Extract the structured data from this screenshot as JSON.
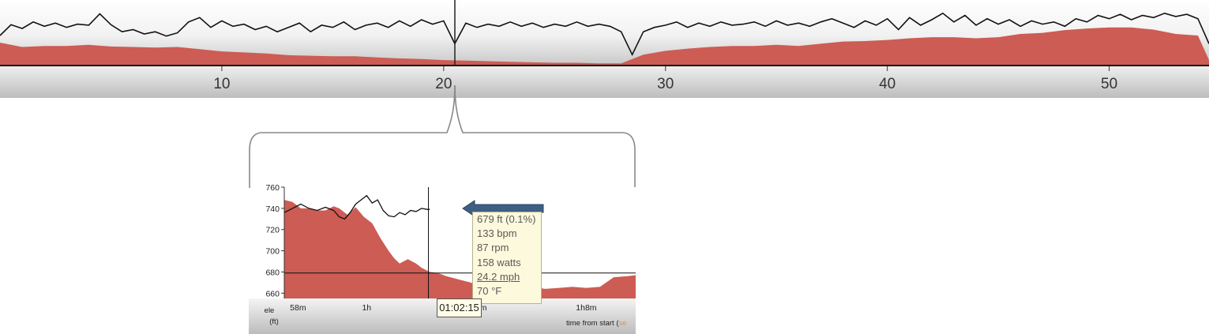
{
  "chart_data": [
    {
      "type": "area",
      "panel": "overview",
      "x_ticks": [
        "10",
        "20",
        "30",
        "40",
        "50"
      ],
      "xlim": [
        0,
        54.5
      ],
      "elevation_profile": [
        [
          0,
          0.42
        ],
        [
          1,
          0.34
        ],
        [
          2,
          0.36
        ],
        [
          3,
          0.36
        ],
        [
          4,
          0.38
        ],
        [
          5,
          0.35
        ],
        [
          6,
          0.34
        ],
        [
          7,
          0.33
        ],
        [
          8,
          0.34
        ],
        [
          9,
          0.3
        ],
        [
          10,
          0.26
        ],
        [
          11,
          0.24
        ],
        [
          12,
          0.22
        ],
        [
          13,
          0.19
        ],
        [
          14,
          0.18
        ],
        [
          15,
          0.17
        ],
        [
          16,
          0.17
        ],
        [
          17,
          0.15
        ],
        [
          18,
          0.13
        ],
        [
          19,
          0.12
        ],
        [
          20,
          0.1
        ],
        [
          21,
          0.09
        ],
        [
          22,
          0.08
        ],
        [
          23,
          0.07
        ],
        [
          24,
          0.06
        ],
        [
          25,
          0.05
        ],
        [
          26,
          0.05
        ],
        [
          27,
          0.04
        ],
        [
          28,
          0.04
        ],
        [
          29,
          0.2
        ],
        [
          30,
          0.27
        ],
        [
          31,
          0.31
        ],
        [
          32,
          0.34
        ],
        [
          33,
          0.36
        ],
        [
          34,
          0.36
        ],
        [
          35,
          0.38
        ],
        [
          36,
          0.36
        ],
        [
          37,
          0.4
        ],
        [
          38,
          0.44
        ],
        [
          39,
          0.45
        ],
        [
          40,
          0.47
        ],
        [
          41,
          0.5
        ],
        [
          42,
          0.52
        ],
        [
          43,
          0.52
        ],
        [
          44,
          0.5
        ],
        [
          45,
          0.52
        ],
        [
          46,
          0.58
        ],
        [
          47,
          0.6
        ],
        [
          48,
          0.65
        ],
        [
          49,
          0.68
        ],
        [
          50,
          0.7
        ],
        [
          51,
          0.7
        ],
        [
          52,
          0.66
        ],
        [
          53,
          0.58
        ],
        [
          54,
          0.55
        ],
        [
          54.5,
          0.1
        ]
      ],
      "heart_rate_profile": [
        [
          0,
          0.55
        ],
        [
          0.5,
          0.75
        ],
        [
          1,
          0.68
        ],
        [
          1.5,
          0.8
        ],
        [
          2,
          0.72
        ],
        [
          2.5,
          0.78
        ],
        [
          3,
          0.7
        ],
        [
          3.5,
          0.76
        ],
        [
          4,
          0.74
        ],
        [
          4.5,
          0.95
        ],
        [
          5,
          0.75
        ],
        [
          5.5,
          0.62
        ],
        [
          6,
          0.66
        ],
        [
          6.5,
          0.58
        ],
        [
          7,
          0.62
        ],
        [
          7.5,
          0.54
        ],
        [
          8,
          0.6
        ],
        [
          8.5,
          0.8
        ],
        [
          9,
          0.88
        ],
        [
          9.5,
          0.7
        ],
        [
          10,
          0.82
        ],
        [
          10.5,
          0.72
        ],
        [
          11,
          0.76
        ],
        [
          11.5,
          0.66
        ],
        [
          12,
          0.72
        ],
        [
          12.5,
          0.62
        ],
        [
          13,
          0.7
        ],
        [
          13.5,
          0.78
        ],
        [
          14,
          0.62
        ],
        [
          14.5,
          0.74
        ],
        [
          15,
          0.7
        ],
        [
          15.5,
          0.8
        ],
        [
          16,
          0.66
        ],
        [
          16.5,
          0.74
        ],
        [
          17,
          0.78
        ],
        [
          17.5,
          0.7
        ],
        [
          18,
          0.82
        ],
        [
          18.5,
          0.72
        ],
        [
          19,
          0.84
        ],
        [
          19.5,
          0.76
        ],
        [
          20,
          0.82
        ],
        [
          20.5,
          0.4
        ],
        [
          21,
          0.78
        ],
        [
          21.5,
          0.7
        ],
        [
          22,
          0.76
        ],
        [
          22.5,
          0.72
        ],
        [
          23,
          0.8
        ],
        [
          23.5,
          0.72
        ],
        [
          24,
          0.78
        ],
        [
          24.5,
          0.7
        ],
        [
          25,
          0.76
        ],
        [
          25.5,
          0.72
        ],
        [
          26,
          0.8
        ],
        [
          26.5,
          0.72
        ],
        [
          27,
          0.76
        ],
        [
          27.5,
          0.72
        ],
        [
          28,
          0.62
        ],
        [
          28.5,
          0.2
        ],
        [
          29,
          0.62
        ],
        [
          29.5,
          0.7
        ],
        [
          30,
          0.74
        ],
        [
          30.5,
          0.8
        ],
        [
          31,
          0.7
        ],
        [
          31.5,
          0.78
        ],
        [
          32,
          0.72
        ],
        [
          32.5,
          0.8
        ],
        [
          33,
          0.74
        ],
        [
          33.5,
          0.76
        ],
        [
          34,
          0.8
        ],
        [
          34.5,
          0.72
        ],
        [
          35,
          0.82
        ],
        [
          35.5,
          0.74
        ],
        [
          36,
          0.78
        ],
        [
          36.5,
          0.72
        ],
        [
          37,
          0.8
        ],
        [
          37.5,
          0.86
        ],
        [
          38,
          0.78
        ],
        [
          38.5,
          0.7
        ],
        [
          39,
          0.82
        ],
        [
          39.5,
          0.74
        ],
        [
          40,
          0.86
        ],
        [
          40.5,
          0.66
        ],
        [
          41,
          0.88
        ],
        [
          41.5,
          0.74
        ],
        [
          42,
          0.84
        ],
        [
          42.5,
          0.96
        ],
        [
          43,
          0.8
        ],
        [
          43.5,
          0.92
        ],
        [
          44,
          0.74
        ],
        [
          44.5,
          0.86
        ],
        [
          45,
          0.76
        ],
        [
          45.5,
          0.84
        ],
        [
          46,
          0.72
        ],
        [
          46.5,
          0.82
        ],
        [
          47,
          0.76
        ],
        [
          47.5,
          0.8
        ],
        [
          48,
          0.72
        ],
        [
          48.5,
          0.86
        ],
        [
          49,
          0.8
        ],
        [
          49.5,
          0.92
        ],
        [
          50,
          0.86
        ],
        [
          50.5,
          0.94
        ],
        [
          51,
          0.84
        ],
        [
          51.5,
          0.92
        ],
        [
          52,
          0.88
        ],
        [
          52.5,
          0.96
        ],
        [
          53,
          0.9
        ],
        [
          53.5,
          0.94
        ],
        [
          54,
          0.86
        ],
        [
          54.5,
          0.4
        ]
      ]
    },
    {
      "type": "area",
      "panel": "zoom",
      "ylim": [
        655,
        760
      ],
      "y_ticks": [
        "760",
        "740",
        "720",
        "700",
        "680",
        "660"
      ],
      "y_label_line1": "ele",
      "y_label_line2": "(ft)",
      "x_tick_labels": [
        "58m",
        "1h",
        "1h4m",
        "1h8m"
      ],
      "x_tick_positions_min": [
        57.5,
        60,
        64,
        68
      ],
      "xlim": [
        57.0,
        69.8
      ],
      "cursor_time_min": 62.25,
      "reference_line_ft": 679,
      "elevation_ft": [
        [
          57.0,
          748
        ],
        [
          57.3,
          746
        ],
        [
          57.6,
          740
        ],
        [
          57.9,
          740
        ],
        [
          58.2,
          738
        ],
        [
          58.5,
          738
        ],
        [
          58.8,
          742
        ],
        [
          59.0,
          740
        ],
        [
          59.3,
          734
        ],
        [
          59.6,
          741
        ],
        [
          59.9,
          732
        ],
        [
          60.2,
          726
        ],
        [
          60.5,
          712
        ],
        [
          60.8,
          700
        ],
        [
          61.0,
          693
        ],
        [
          61.2,
          688
        ],
        [
          61.5,
          692
        ],
        [
          61.8,
          688
        ],
        [
          62.0,
          684
        ],
        [
          62.3,
          680
        ],
        [
          62.6,
          679
        ],
        [
          62.9,
          676
        ],
        [
          63.2,
          674
        ],
        [
          63.5,
          672
        ],
        [
          63.8,
          670
        ],
        [
          64.1,
          666
        ],
        [
          64.4,
          665
        ],
        [
          64.7,
          664
        ],
        [
          65.0,
          665
        ],
        [
          65.3,
          664
        ],
        [
          65.6,
          665
        ],
        [
          66.0,
          666
        ],
        [
          66.5,
          664
        ],
        [
          67.0,
          665
        ],
        [
          67.5,
          666
        ],
        [
          68.0,
          665
        ],
        [
          68.5,
          666
        ],
        [
          69.0,
          675
        ],
        [
          69.5,
          676
        ],
        [
          69.8,
          677
        ]
      ],
      "heart_rate_trace_ft": [
        [
          57.0,
          736
        ],
        [
          57.3,
          740
        ],
        [
          57.6,
          744
        ],
        [
          57.9,
          740
        ],
        [
          58.2,
          738
        ],
        [
          58.5,
          741
        ],
        [
          58.8,
          738
        ],
        [
          59.0,
          732
        ],
        [
          59.2,
          730
        ],
        [
          59.4,
          736
        ],
        [
          59.6,
          744
        ],
        [
          59.8,
          748
        ],
        [
          60.0,
          752
        ],
        [
          60.2,
          745
        ],
        [
          60.4,
          748
        ],
        [
          60.6,
          738
        ],
        [
          60.8,
          733
        ],
        [
          61.0,
          732
        ],
        [
          61.2,
          736
        ],
        [
          61.4,
          734
        ],
        [
          61.6,
          738
        ],
        [
          61.8,
          737
        ],
        [
          62.0,
          740
        ],
        [
          62.2,
          739
        ],
        [
          62.3,
          739
        ]
      ],
      "tooltip": {
        "lines": [
          "679 ft (0.1%)",
          "133 bpm",
          "87 rpm",
          "158 watts",
          "24.2 mph",
          "70 °F"
        ],
        "highlighted_index": 4
      },
      "time_marker": "01:02:15",
      "x_axis_caption": "time from start (",
      "x_axis_caption_accent": "se"
    }
  ],
  "colors": {
    "elevation_fill": "#cd5c54",
    "line": "#111111",
    "arrow_fill": "#3e5f82",
    "tooltip_bg": "#fdf9dd",
    "tooltip_text": "#5a5a5a",
    "accent": "#e8932e"
  }
}
